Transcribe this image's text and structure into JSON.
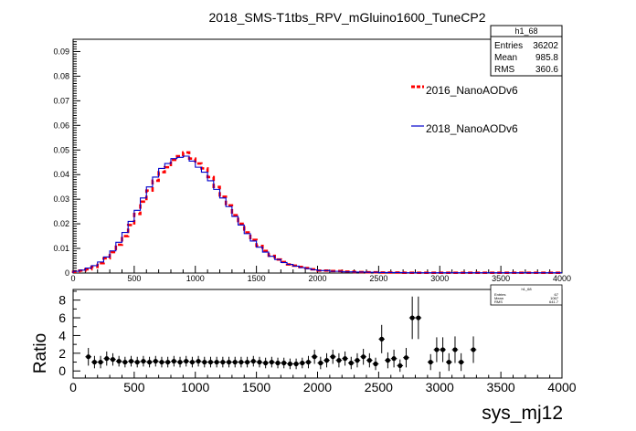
{
  "chart_data": [
    {
      "type": "line",
      "title": "2018_SMS-T1tbs_RPV_mGluino1600_TuneCP2",
      "xlabel": "",
      "ylabel": "",
      "xlim": [
        0,
        4000
      ],
      "ylim": [
        0,
        0.095
      ],
      "x_ticks": [
        "0",
        "500",
        "1000",
        "1500",
        "2000",
        "2500",
        "3000",
        "3500",
        "4000"
      ],
      "y_ticks": [
        "0",
        "0.01",
        "0.02",
        "0.03",
        "0.04",
        "0.05",
        "0.06",
        "0.07",
        "0.08",
        "0.09"
      ],
      "bin_width": 50,
      "stats_box": {
        "name": "h1_68",
        "rows": [
          {
            "label": "Entries",
            "value": "36202"
          },
          {
            "label": "Mean",
            "value": "985.8"
          },
          {
            "label": "RMS",
            "value": "360.6"
          }
        ]
      },
      "series": [
        {
          "name": "2016_NanoAODv6",
          "color": "#ff0000",
          "style": "dashed",
          "bin_low_edges": [
            0,
            50,
            100,
            150,
            200,
            250,
            300,
            350,
            400,
            450,
            500,
            550,
            600,
            650,
            700,
            750,
            800,
            850,
            900,
            950,
            1000,
            1050,
            1100,
            1150,
            1200,
            1250,
            1300,
            1350,
            1400,
            1450,
            1500,
            1550,
            1600,
            1650,
            1700,
            1750,
            1800,
            1850,
            1900,
            1950,
            2000,
            2100,
            2200,
            2300,
            2400,
            2500,
            2600,
            2700,
            2800,
            2900,
            3000,
            3100,
            3200,
            3300,
            3400,
            3500,
            3600,
            3700,
            3800,
            3900
          ],
          "values": [
            0.0005,
            0.001,
            0.0015,
            0.0025,
            0.004,
            0.006,
            0.0085,
            0.0115,
            0.015,
            0.0195,
            0.024,
            0.029,
            0.0335,
            0.0375,
            0.041,
            0.043,
            0.046,
            0.0475,
            0.049,
            0.0465,
            0.0445,
            0.0425,
            0.039,
            0.035,
            0.031,
            0.0275,
            0.0235,
            0.02,
            0.0165,
            0.0135,
            0.011,
            0.009,
            0.007,
            0.0055,
            0.0045,
            0.0035,
            0.003,
            0.0025,
            0.002,
            0.0015,
            0.001,
            0.0008,
            0.0006,
            0.0004,
            0.0003,
            0.0002,
            0.0002,
            0.0001,
            0.0001,
            0.0001,
            0.0001,
            0.0001,
            0.0001,
            0.0001,
            0.0001,
            0.0001,
            0.0001,
            0.0001,
            0.0001,
            0.0001
          ]
        },
        {
          "name": "2018_NanoAODv6",
          "color": "#0000cc",
          "style": "solid",
          "bin_low_edges": [
            0,
            50,
            100,
            150,
            200,
            250,
            300,
            350,
            400,
            450,
            500,
            550,
            600,
            650,
            700,
            750,
            800,
            850,
            900,
            950,
            1000,
            1050,
            1100,
            1150,
            1200,
            1250,
            1300,
            1350,
            1400,
            1450,
            1500,
            1550,
            1600,
            1650,
            1700,
            1750,
            1800,
            1850,
            1900,
            1950,
            2000,
            2100,
            2200,
            2300,
            2400,
            2500,
            2600,
            2700,
            2800,
            2900,
            3000,
            3100,
            3200,
            3300,
            3400,
            3500,
            3600,
            3700,
            3800,
            3900
          ],
          "values": [
            0.0007,
            0.0012,
            0.002,
            0.003,
            0.0045,
            0.0065,
            0.009,
            0.0125,
            0.0165,
            0.021,
            0.0255,
            0.0305,
            0.035,
            0.039,
            0.0425,
            0.0445,
            0.0465,
            0.047,
            0.0475,
            0.0455,
            0.043,
            0.041,
            0.0375,
            0.034,
            0.0305,
            0.027,
            0.023,
            0.0195,
            0.016,
            0.013,
            0.0105,
            0.0085,
            0.0068,
            0.0055,
            0.0043,
            0.0035,
            0.0028,
            0.0022,
            0.0018,
            0.0013,
            0.001,
            0.0007,
            0.0005,
            0.0004,
            0.0003,
            0.0002,
            0.0002,
            0.0001,
            0.0001,
            0.0001,
            0.0001,
            0.0001,
            0.0001,
            0.0001,
            0.0001,
            0.0001,
            0.0001,
            0.0001,
            0.0001,
            0.0001
          ]
        }
      ],
      "legend": "right"
    },
    {
      "type": "scatter",
      "title": "",
      "xlabel": "sys_mj12",
      "ylabel": "Ratio",
      "xlim": [
        0,
        4000
      ],
      "ylim": [
        -0.8,
        9.2
      ],
      "x_ticks": [
        "0",
        "500",
        "1000",
        "1500",
        "2000",
        "2500",
        "3000",
        "3500",
        "4000"
      ],
      "y_ticks": [
        "0",
        "2",
        "4",
        "6",
        "8"
      ],
      "stats_box": {
        "name": "h1_68",
        "rows": [
          {
            "label": "Entries",
            "value": "67"
          },
          {
            "label": "Mean",
            "value": "1067"
          },
          {
            "label": "RMS",
            "value": "641.7"
          }
        ]
      },
      "points": [
        {
          "x": 125,
          "y": 1.6,
          "err": 1.0
        },
        {
          "x": 175,
          "y": 1.0,
          "err": 0.7
        },
        {
          "x": 225,
          "y": 1.0,
          "err": 0.7
        },
        {
          "x": 275,
          "y": 1.4,
          "err": 0.8
        },
        {
          "x": 325,
          "y": 1.3,
          "err": 0.7
        },
        {
          "x": 375,
          "y": 1.1,
          "err": 0.6
        },
        {
          "x": 425,
          "y": 1.0,
          "err": 0.6
        },
        {
          "x": 475,
          "y": 1.1,
          "err": 0.6
        },
        {
          "x": 525,
          "y": 1.0,
          "err": 0.6
        },
        {
          "x": 575,
          "y": 1.1,
          "err": 0.6
        },
        {
          "x": 625,
          "y": 1.0,
          "err": 0.6
        },
        {
          "x": 675,
          "y": 1.1,
          "err": 0.6
        },
        {
          "x": 725,
          "y": 1.0,
          "err": 0.6
        },
        {
          "x": 775,
          "y": 1.0,
          "err": 0.6
        },
        {
          "x": 825,
          "y": 1.1,
          "err": 0.6
        },
        {
          "x": 875,
          "y": 1.0,
          "err": 0.6
        },
        {
          "x": 925,
          "y": 1.1,
          "err": 0.6
        },
        {
          "x": 975,
          "y": 1.0,
          "err": 0.6
        },
        {
          "x": 1025,
          "y": 1.1,
          "err": 0.6
        },
        {
          "x": 1075,
          "y": 1.0,
          "err": 0.6
        },
        {
          "x": 1125,
          "y": 1.0,
          "err": 0.6
        },
        {
          "x": 1175,
          "y": 1.0,
          "err": 0.6
        },
        {
          "x": 1225,
          "y": 1.0,
          "err": 0.6
        },
        {
          "x": 1275,
          "y": 1.0,
          "err": 0.6
        },
        {
          "x": 1325,
          "y": 1.0,
          "err": 0.6
        },
        {
          "x": 1375,
          "y": 1.0,
          "err": 0.6
        },
        {
          "x": 1425,
          "y": 1.0,
          "err": 0.6
        },
        {
          "x": 1475,
          "y": 1.1,
          "err": 0.6
        },
        {
          "x": 1525,
          "y": 1.0,
          "err": 0.6
        },
        {
          "x": 1575,
          "y": 0.9,
          "err": 0.6
        },
        {
          "x": 1625,
          "y": 1.0,
          "err": 0.6
        },
        {
          "x": 1675,
          "y": 0.9,
          "err": 0.6
        },
        {
          "x": 1725,
          "y": 0.9,
          "err": 0.6
        },
        {
          "x": 1775,
          "y": 0.8,
          "err": 0.6
        },
        {
          "x": 1825,
          "y": 0.8,
          "err": 0.6
        },
        {
          "x": 1875,
          "y": 0.9,
          "err": 0.6
        },
        {
          "x": 1925,
          "y": 1.0,
          "err": 0.7
        },
        {
          "x": 1975,
          "y": 1.6,
          "err": 0.8
        },
        {
          "x": 2025,
          "y": 0.9,
          "err": 0.7
        },
        {
          "x": 2075,
          "y": 1.2,
          "err": 0.8
        },
        {
          "x": 2125,
          "y": 1.6,
          "err": 0.8
        },
        {
          "x": 2175,
          "y": 1.2,
          "err": 0.8
        },
        {
          "x": 2225,
          "y": 1.4,
          "err": 0.8
        },
        {
          "x": 2275,
          "y": 0.9,
          "err": 0.7
        },
        {
          "x": 2325,
          "y": 1.2,
          "err": 0.8
        },
        {
          "x": 2375,
          "y": 1.6,
          "err": 0.9
        },
        {
          "x": 2425,
          "y": 1.2,
          "err": 0.8
        },
        {
          "x": 2475,
          "y": 0.8,
          "err": 0.7
        },
        {
          "x": 2525,
          "y": 3.6,
          "err": 1.6
        },
        {
          "x": 2575,
          "y": 1.2,
          "err": 0.9
        },
        {
          "x": 2625,
          "y": 1.4,
          "err": 1.0
        },
        {
          "x": 2675,
          "y": 0.6,
          "err": 0.7
        },
        {
          "x": 2725,
          "y": 1.5,
          "err": 1.1
        },
        {
          "x": 2775,
          "y": 6.0,
          "err": 2.4
        },
        {
          "x": 2825,
          "y": 6.0,
          "err": 2.4
        },
        {
          "x": 2925,
          "y": 1.0,
          "err": 0.9
        },
        {
          "x": 2975,
          "y": 2.4,
          "err": 1.4
        },
        {
          "x": 3025,
          "y": 2.4,
          "err": 1.4
        },
        {
          "x": 3075,
          "y": 1.0,
          "err": 1.0
        },
        {
          "x": 3125,
          "y": 2.4,
          "err": 1.5
        },
        {
          "x": 3175,
          "y": 1.0,
          "err": 1.0
        },
        {
          "x": 3275,
          "y": 2.4,
          "err": 1.5
        }
      ]
    }
  ]
}
